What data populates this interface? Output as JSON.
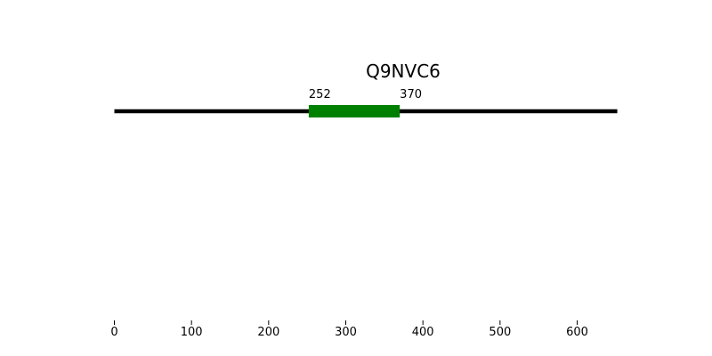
{
  "chart_data": {
    "type": "protein-domain-track",
    "title": "Q9NVC6",
    "sequence_length": 652,
    "domains": [
      {
        "start": 252,
        "end": 370,
        "start_label": "252",
        "end_label": "370",
        "color": "#008000"
      }
    ],
    "backbone_color": "#000000",
    "xlim": [
      0,
      652
    ],
    "xticks": [
      0,
      100,
      200,
      300,
      400,
      500,
      600
    ],
    "xtick_labels": [
      "0",
      "100",
      "200",
      "300",
      "400",
      "500",
      "600"
    ],
    "grid": false
  }
}
